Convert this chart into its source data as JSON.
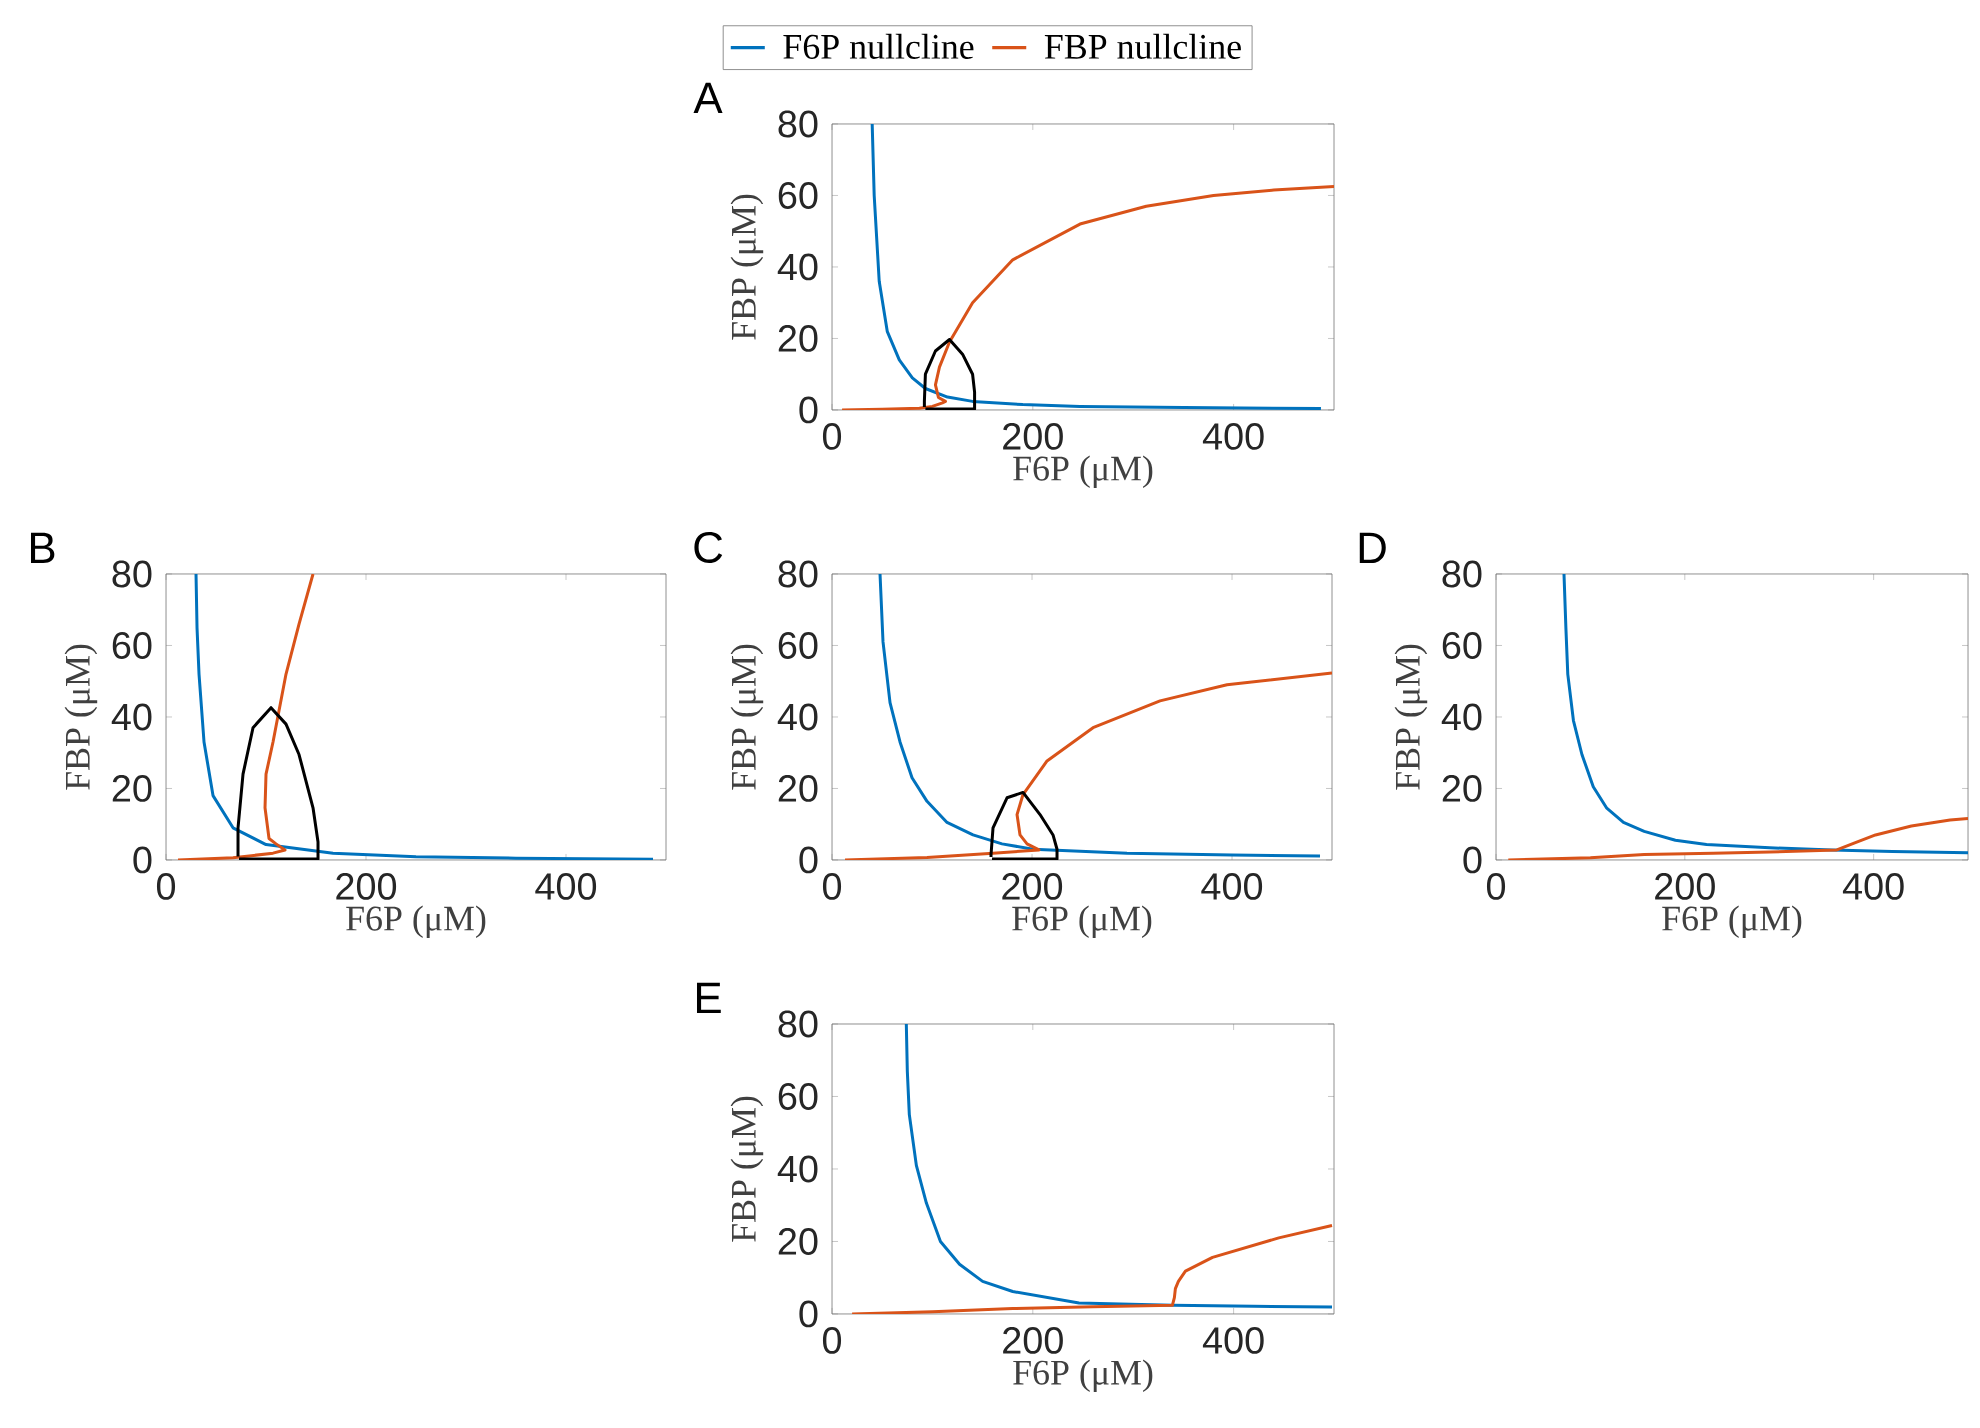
{
  "chart_data": [
    {
      "type": "line",
      "title": "A",
      "xlabel": "F6P (μM)",
      "ylabel": "FBP (μM)",
      "xlim": [
        0,
        500
      ],
      "ylim": [
        0,
        80
      ],
      "xticks": [
        0,
        200,
        400
      ],
      "yticks": [
        0,
        20,
        40,
        60,
        80
      ],
      "legend": "top",
      "series": [
        {
          "name": "F6P nullcline",
          "color": "#0072bd",
          "x": [
            40,
            42,
            47,
            55,
            67,
            80,
            93,
            115,
            140,
            190,
            247,
            350,
            487
          ],
          "values": [
            80,
            60,
            36,
            22,
            14,
            9,
            6,
            3.6,
            2.4,
            1.5,
            1,
            0.7,
            0.4
          ]
        },
        {
          "name": "FBP nullcline",
          "color": "#d95319",
          "x": [
            10,
            50,
            87,
            100,
            110,
            113,
            106,
            103,
            107,
            117,
            140,
            180,
            247,
            313,
            380,
            440,
            500
          ],
          "values": [
            0,
            0.2,
            0.5,
            1,
            2,
            2.4,
            3.5,
            7,
            12,
            19,
            30,
            42,
            52,
            57,
            60,
            61.5,
            62.5
          ]
        },
        {
          "color": "#000000",
          "x": [
            93,
            142,
            142,
            140,
            130,
            117,
            103,
            93,
            92,
            92
          ],
          "values": [
            0.3,
            0.3,
            5,
            10,
            15.6,
            19.7,
            16.5,
            10,
            2.4,
            0.8
          ]
        }
      ]
    },
    {
      "type": "line",
      "title": "B",
      "xlabel": "F6P (μM)",
      "ylabel": "FBP (μM)",
      "xlim": [
        0,
        500
      ],
      "ylim": [
        0,
        80
      ],
      "xticks": [
        0,
        200,
        400
      ],
      "yticks": [
        0,
        20,
        40,
        60,
        80
      ],
      "series": [
        {
          "color": "#0072bd",
          "x": [
            30,
            31,
            33,
            38,
            47,
            67,
            100,
            167,
            250,
            350,
            487
          ],
          "values": [
            80,
            65,
            52,
            33,
            18,
            9,
            4.3,
            1.9,
            0.9,
            0.5,
            0.2
          ]
        },
        {
          "color": "#d95319",
          "x": [
            12,
            67,
            107,
            119,
            110,
            103,
            99,
            100,
            107,
            120,
            133,
            147
          ],
          "values": [
            0,
            0.6,
            1.9,
            2.8,
            4.5,
            6,
            14.6,
            24,
            33,
            52,
            66,
            80
          ]
        },
        {
          "color": "#000000",
          "x": [
            73,
            152,
            152,
            147,
            133,
            120,
            105,
            87,
            77,
            72,
            72
          ],
          "values": [
            0.3,
            0.3,
            5,
            14.6,
            29.5,
            38,
            42.6,
            37,
            24,
            9,
            1
          ]
        }
      ]
    },
    {
      "type": "line",
      "title": "C",
      "xlabel": "F6P (μM)",
      "ylabel": "FBP (μM)",
      "xlim": [
        0,
        500
      ],
      "ylim": [
        0,
        80
      ],
      "xticks": [
        0,
        200,
        400
      ],
      "yticks": [
        0,
        20,
        40,
        60,
        80
      ],
      "series": [
        {
          "color": "#0072bd",
          "x": [
            48,
            51,
            58,
            68,
            80,
            95,
            115,
            141,
            170,
            201,
            295,
            400,
            488
          ],
          "values": [
            80,
            61,
            44,
            33,
            23,
            16.4,
            10.5,
            7,
            4.5,
            3,
            1.9,
            1.4,
            1.1
          ]
        },
        {
          "color": "#d95319",
          "x": [
            13,
            95,
            161,
            207,
            195,
            188,
            185,
            191,
            215,
            261,
            328,
            395,
            500
          ],
          "values": [
            0,
            0.7,
            1.9,
            2.8,
            4.5,
            7,
            12.7,
            18.3,
            27.7,
            37,
            44.5,
            49,
            52.3
          ]
        },
        {
          "color": "#000000",
          "x": [
            160,
            225,
            225,
            221,
            208,
            191,
            175,
            161,
            159,
            159
          ],
          "values": [
            0.3,
            0.3,
            3,
            7,
            12.7,
            18.9,
            17.4,
            9,
            1.5,
            0.8
          ]
        }
      ]
    },
    {
      "type": "line",
      "title": "D",
      "xlabel": "F6P (μM)",
      "ylabel": "FBP (μM)",
      "xlim": [
        0,
        500
      ],
      "ylim": [
        0,
        80
      ],
      "xticks": [
        0,
        200,
        400
      ],
      "yticks": [
        0,
        20,
        40,
        60,
        80
      ],
      "series": [
        {
          "color": "#0072bd",
          "x": [
            72,
            74,
            76,
            82,
            91,
            103,
            117,
            135,
            157,
            190,
            223,
            290,
            356,
            420,
            500
          ],
          "values": [
            80,
            65,
            52,
            39,
            29.5,
            20.5,
            14.6,
            10.5,
            8,
            5.5,
            4.3,
            3.4,
            2.8,
            2.4,
            2
          ]
        },
        {
          "color": "#d95319",
          "x": [
            13,
            100,
            157,
            230,
            290,
            361,
            380,
            402,
            440,
            481,
            500
          ],
          "values": [
            0,
            0.6,
            1.5,
            1.9,
            2.2,
            2.8,
            4.8,
            7,
            9.5,
            11.2,
            11.6
          ]
        }
      ]
    },
    {
      "type": "line",
      "title": "E",
      "xlabel": "F6P (μM)",
      "ylabel": "FBP (μM)",
      "xlim": [
        0,
        500
      ],
      "ylim": [
        0,
        80
      ],
      "xticks": [
        0,
        200,
        400
      ],
      "yticks": [
        0,
        20,
        40,
        60,
        80
      ],
      "series": [
        {
          "color": "#0072bd",
          "x": [
            74,
            75,
            77,
            84,
            94,
            108,
            127,
            150,
            180,
            246,
            339,
            420,
            498
          ],
          "values": [
            80,
            67,
            55,
            41,
            30.6,
            20,
            13.7,
            9,
            6.2,
            3,
            2.4,
            2.1,
            1.9
          ]
        },
        {
          "color": "#d95319",
          "x": [
            20,
            100,
            180,
            260,
            339,
            341,
            342,
            345,
            352,
            379,
            445,
            498
          ],
          "values": [
            0,
            0.6,
            1.5,
            2,
            2.4,
            4.5,
            7,
            9,
            11.8,
            15.6,
            21,
            24.4
          ]
        }
      ]
    }
  ]
}
